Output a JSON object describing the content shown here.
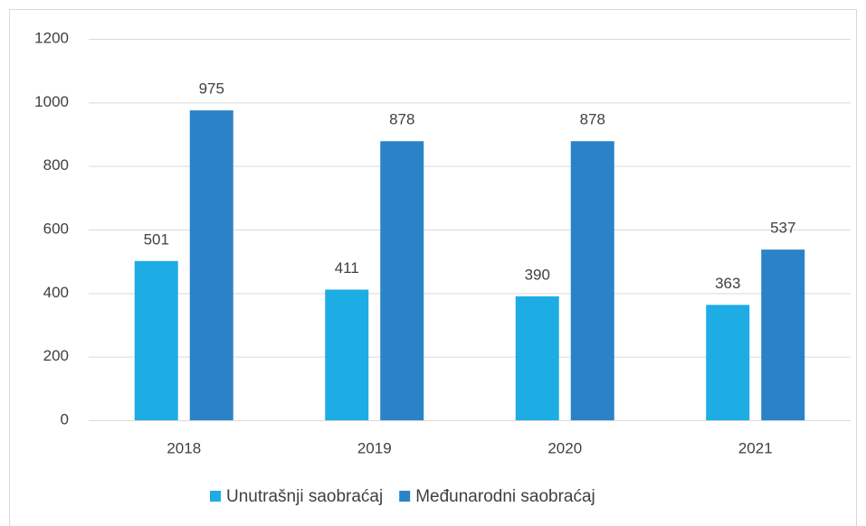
{
  "chart_data": {
    "type": "bar",
    "categories": [
      "2018",
      "2019",
      "2020",
      "2021"
    ],
    "series": [
      {
        "name": "Unutrašnji saobraćaj",
        "color": "#1eace4",
        "values": [
          501,
          411,
          390,
          363
        ]
      },
      {
        "name": "Međunarodni saobraćaj",
        "color": "#2a83c7",
        "values": [
          975,
          878,
          878,
          537
        ]
      }
    ],
    "ylim": [
      0,
      1200
    ],
    "yticks": [
      0,
      200,
      400,
      600,
      800,
      1000,
      1200
    ],
    "grid": true,
    "legend": "bottom"
  }
}
